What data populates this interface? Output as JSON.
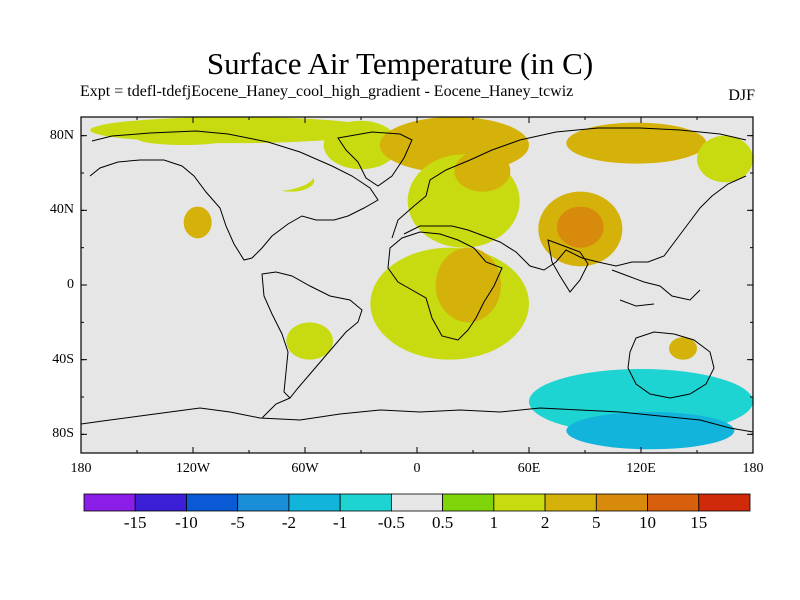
{
  "title": "Surface Air Temperature (in C)",
  "subtitle": "Expt = tdefl-tdefjEocene_Haney_cool_high_gradient - Eocene_Haney_tcwiz",
  "season": "DJF",
  "map": {
    "lat_ticks": [
      "80N",
      "40N",
      "0",
      "40S",
      "80S"
    ],
    "lat_tick_values": [
      80,
      40,
      0,
      -40,
      -80
    ],
    "lon_ticks": [
      "180",
      "120W",
      "60W",
      "0",
      "60E",
      "120E",
      "180"
    ],
    "lon_tick_values": [
      -180,
      -120,
      -60,
      0,
      60,
      120,
      180
    ],
    "lon_range": [
      -180,
      180
    ],
    "lat_range": [
      -90,
      90
    ],
    "background_color": "#e6e6e6"
  },
  "colorbar": {
    "labels": [
      "-15",
      "-10",
      "-5",
      "-2",
      "-1",
      "-0.5",
      "0.5",
      "1",
      "2",
      "5",
      "10",
      "15"
    ],
    "colors": [
      "#8a1de6",
      "#3b1fd6",
      "#0a5ad6",
      "#1a8ed8",
      "#12b4dc",
      "#1ed4d2",
      "#e6e6e6",
      "#80d40a",
      "#c8da10",
      "#d4b20a",
      "#d88a0c",
      "#d8600c",
      "#d02a0a"
    ]
  },
  "chart_data": {
    "type": "map-contour",
    "variable": "Surface Air Temperature",
    "units": "C",
    "season": "DJF",
    "levels": [
      -15,
      -10,
      -5,
      -2,
      -1,
      -0.5,
      0.5,
      1,
      2,
      5,
      10,
      15
    ],
    "regions": [
      {
        "lon": [
          -175,
          -20
        ],
        "lat": [
          76,
          90
        ],
        "level": 1
      },
      {
        "lon": [
          -150,
          -100
        ],
        "lat": [
          75,
          82
        ],
        "level": 1
      },
      {
        "lon": [
          -80,
          -55
        ],
        "lat": [
          50,
          62
        ],
        "level": 1
      },
      {
        "lon": [
          -50,
          -10
        ],
        "lat": [
          62,
          88
        ],
        "level": 1
      },
      {
        "lon": [
          -20,
          60
        ],
        "lat": [
          60,
          90
        ],
        "level": 2
      },
      {
        "lon": [
          80,
          155
        ],
        "lat": [
          65,
          87
        ],
        "level": 2
      },
      {
        "lon": [
          150,
          180
        ],
        "lat": [
          55,
          80
        ],
        "level": 1
      },
      {
        "lon": [
          -5,
          55
        ],
        "lat": [
          20,
          70
        ],
        "level": 1
      },
      {
        "lon": [
          20,
          50
        ],
        "lat": [
          50,
          72
        ],
        "level": 2
      },
      {
        "lon": [
          -125,
          -110
        ],
        "lat": [
          25,
          42
        ],
        "level": 2
      },
      {
        "lon": [
          -105,
          -55
        ],
        "lat": [
          50,
          68
        ],
        "level": -0.5
      },
      {
        "lon": [
          -50,
          -10
        ],
        "lat": [
          45,
          55
        ],
        "level": -0.5
      },
      {
        "lon": [
          -25,
          60
        ],
        "lat": [
          -40,
          20
        ],
        "level": 1
      },
      {
        "lon": [
          10,
          45
        ],
        "lat": [
          -20,
          20
        ],
        "level": 2
      },
      {
        "lon": [
          65,
          110
        ],
        "lat": [
          10,
          50
        ],
        "level": 2
      },
      {
        "lon": [
          75,
          100
        ],
        "lat": [
          20,
          42
        ],
        "level": 5
      },
      {
        "lon": [
          -70,
          -45
        ],
        "lat": [
          -40,
          -20
        ],
        "level": 1
      },
      {
        "lon": [
          -60,
          -50
        ],
        "lat": [
          -5,
          5
        ],
        "level": -0.5
      },
      {
        "lon": [
          135,
          150
        ],
        "lat": [
          -40,
          -28
        ],
        "level": 2
      },
      {
        "lon": [
          -180,
          -170
        ],
        "lat": [
          -55,
          -45
        ],
        "level": -0.5
      },
      {
        "lon": [
          -180,
          180
        ],
        "lat": [
          -90,
          -68
        ],
        "level": -0.5
      },
      {
        "lon": [
          60,
          180
        ],
        "lat": [
          -80,
          -45
        ],
        "level": -1
      },
      {
        "lon": [
          80,
          170
        ],
        "lat": [
          -88,
          -68
        ],
        "level": -2
      }
    ]
  }
}
